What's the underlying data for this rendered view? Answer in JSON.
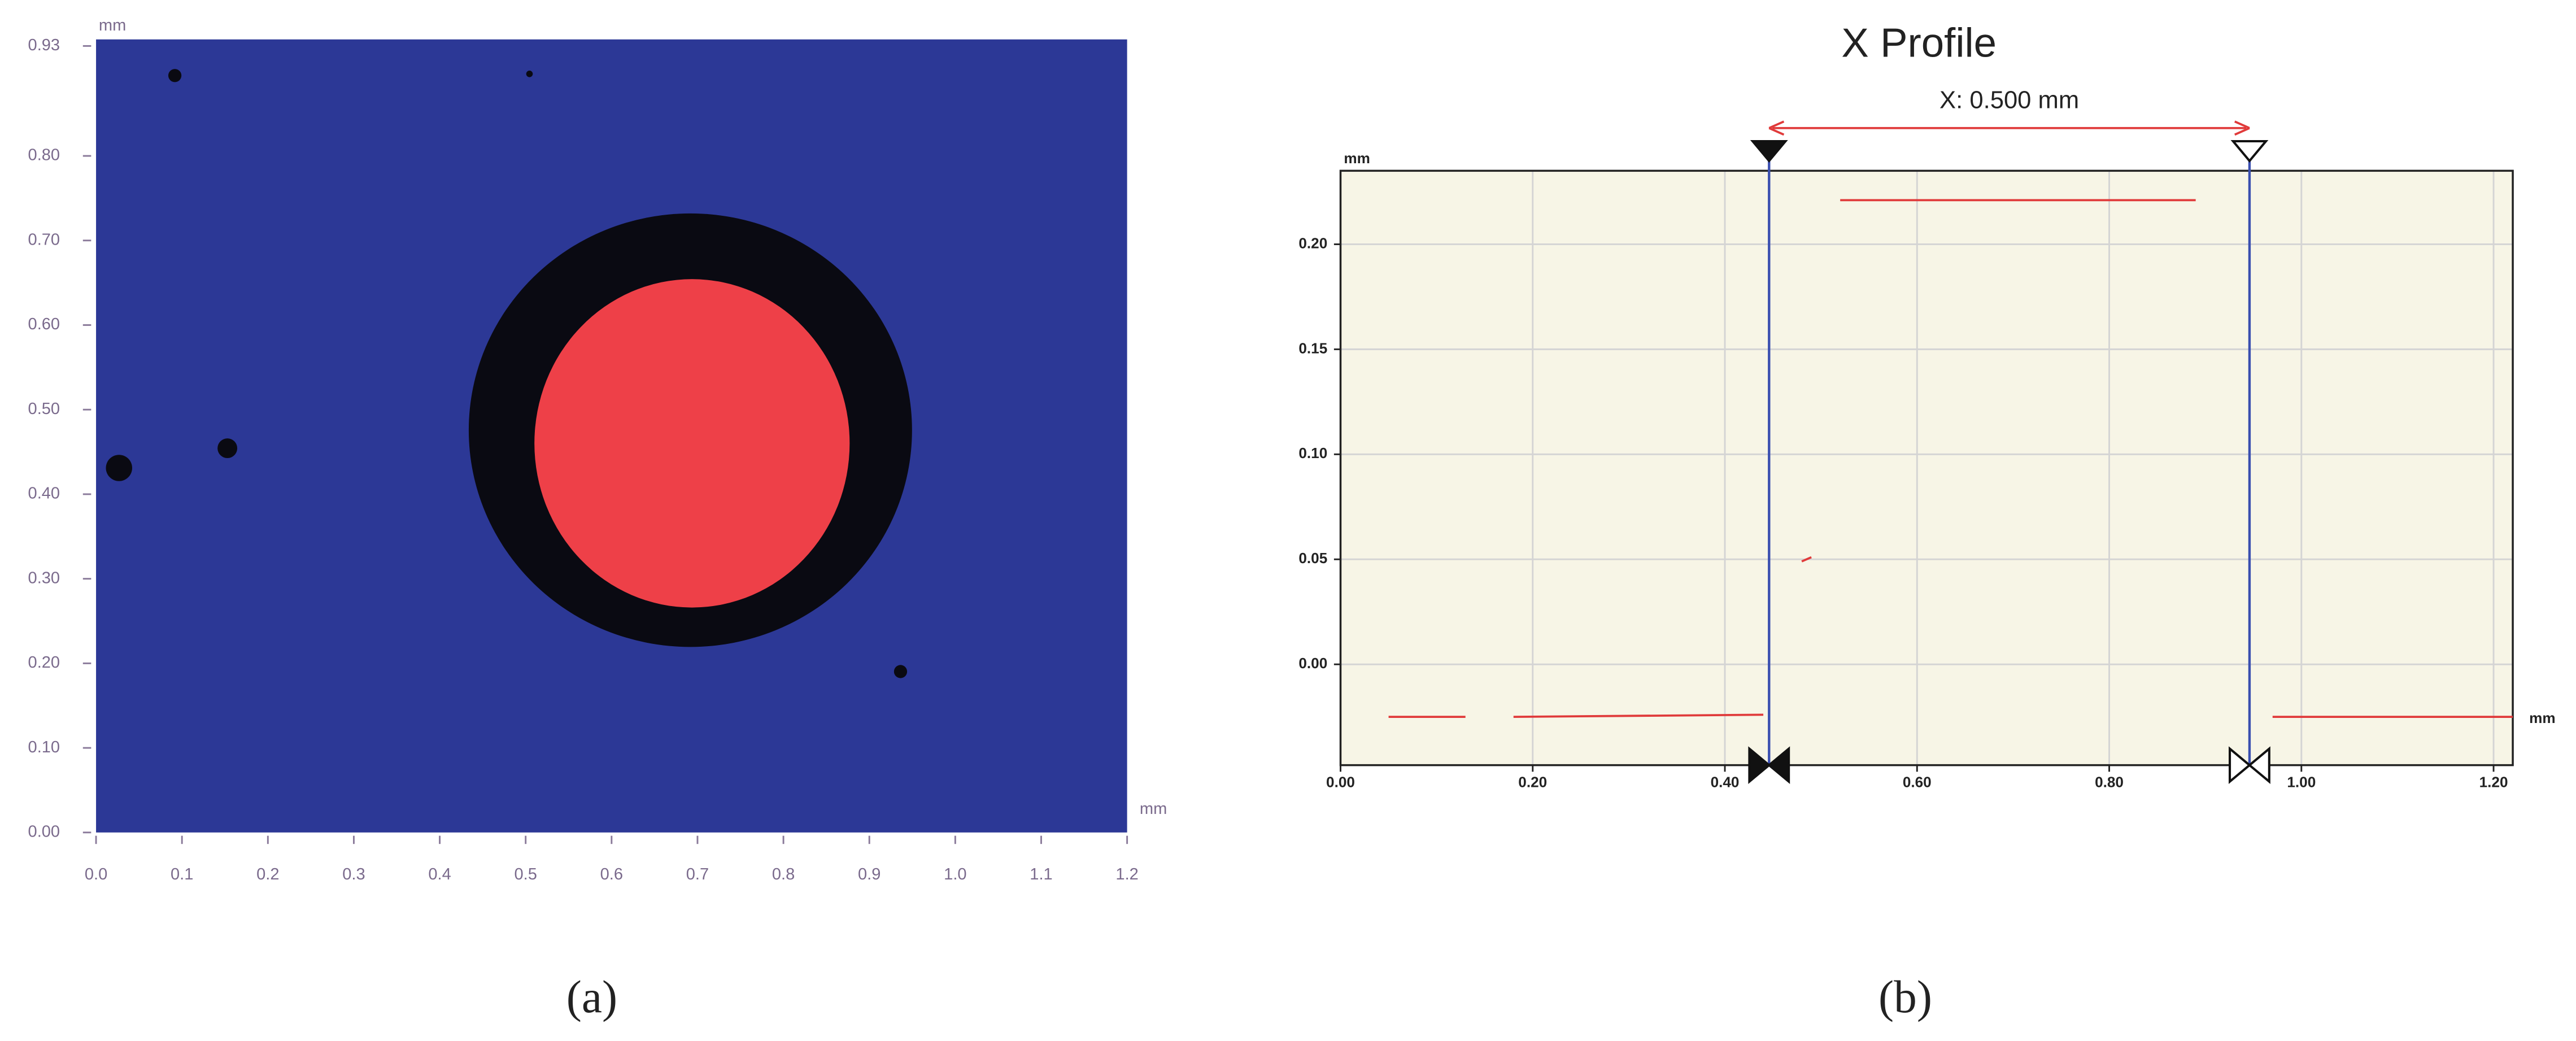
{
  "chart_data": [
    {
      "type": "heatmap",
      "x_label": "mm",
      "y_label": "mm",
      "caption": "(a)",
      "xlim": [
        0,
        1.2
      ],
      "ylim": [
        0,
        0.93
      ],
      "xticks": [
        {
          "value": 0,
          "label": "0.0"
        },
        0.1,
        0.2,
        0.3,
        0.4,
        0.5,
        0.6,
        0.7,
        0.8,
        0.9,
        {
          "value": 1,
          "label": "1.0"
        },
        1.1,
        1.2
      ],
      "yticks": [
        {
          "value": 0,
          "label": "0.00"
        },
        {
          "value": 0.1,
          "label": "0.10"
        },
        {
          "value": 0.2,
          "label": "0.20"
        },
        {
          "value": 0.3,
          "label": "0.30"
        },
        {
          "value": 0.4,
          "label": "0.40"
        },
        {
          "value": 0.5,
          "label": "0.50"
        },
        {
          "value": 0.6,
          "label": "0.60"
        },
        {
          "value": 0.7,
          "label": "0.70"
        },
        {
          "value": 0.8,
          "label": "0.80"
        },
        0.93
      ]
    },
    {
      "type": "line",
      "title": "X Profile",
      "annotation": "X: 0.500 mm",
      "x_label": "mm",
      "y_label": "mm",
      "caption": "(b)",
      "xlim": [
        0,
        1.22
      ],
      "ylim": [
        -0.048,
        0.235
      ],
      "grid": true,
      "xticks": [
        {
          "value": 0,
          "label": "0.00"
        },
        {
          "value": 0.2,
          "label": "0.20"
        },
        {
          "value": 0.4,
          "label": "0.40"
        },
        {
          "value": 0.6,
          "label": "0.60"
        },
        {
          "value": 0.8,
          "label": "0.80"
        },
        {
          "value": 1,
          "label": "1.00"
        },
        {
          "value": 1.2,
          "label": "1.20"
        }
      ],
      "yticks": [
        {
          "value": 0,
          "label": "0.00"
        },
        0.05,
        {
          "value": 0.1,
          "label": "0.10"
        },
        0.15,
        {
          "value": 0.2,
          "label": "0.20"
        }
      ],
      "cursors": [
        0.446,
        0.946
      ],
      "cursor_color": "#3a4fb0",
      "x": [
        0.05,
        0.13,
        0.14,
        0.18,
        0.44,
        0.46,
        0.48,
        0.49,
        0.5,
        0.52,
        0.89,
        0.93,
        0.97,
        1.22
      ],
      "series": [
        {
          "color": "#e03a3a",
          "values": [
            -0.025,
            -0.025,
            null,
            -0.025,
            -0.024,
            null,
            0.049,
            0.051,
            null,
            0.221,
            0.221,
            null,
            -0.025,
            -0.025
          ]
        }
      ]
    }
  ]
}
